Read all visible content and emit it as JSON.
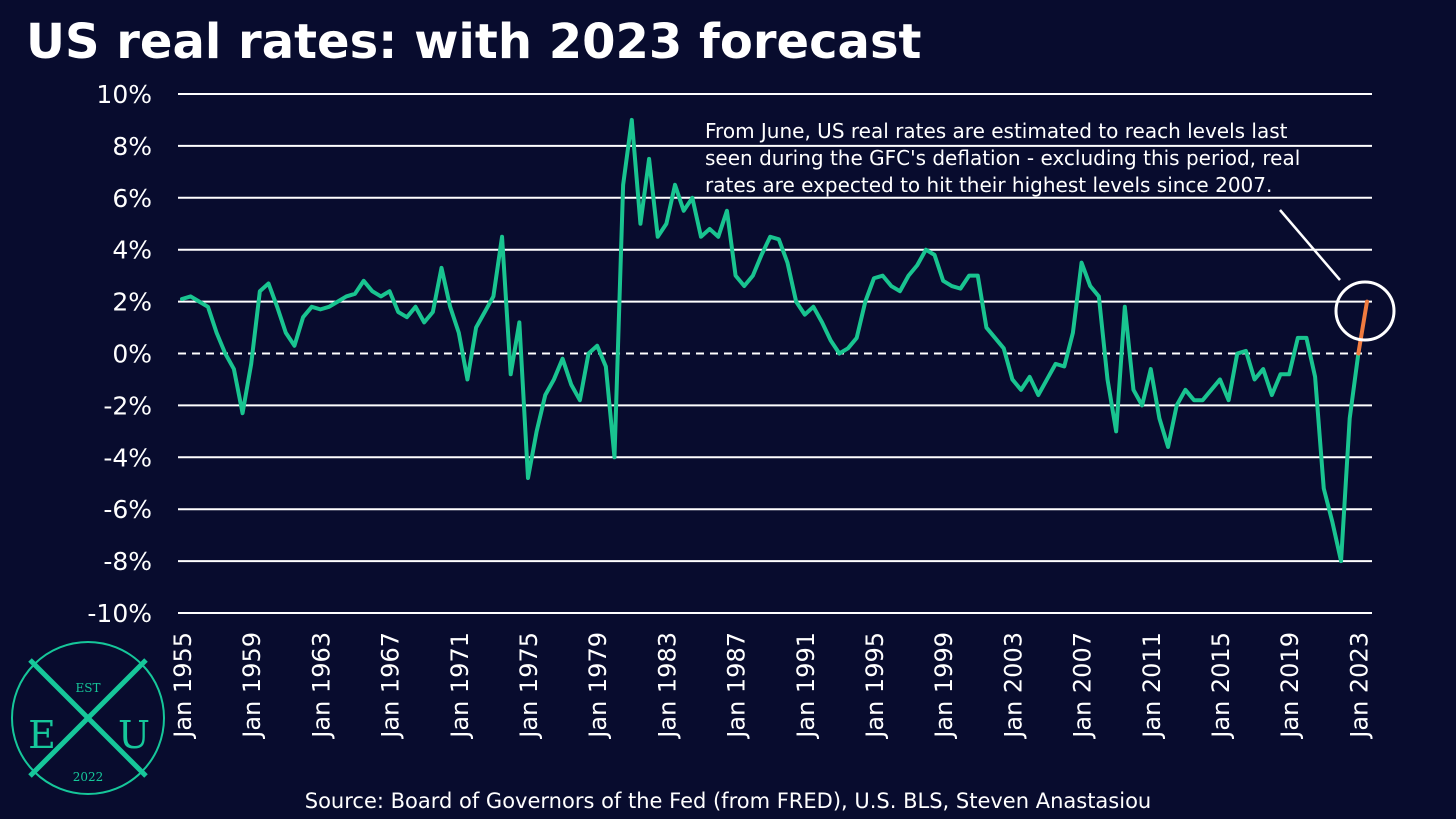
{
  "chart_data": {
    "type": "line",
    "title": "US real rates: with 2023 forecast",
    "source": "Source: Board of Governors of the Fed (from FRED), U.S. BLS, Steven Anastasiou",
    "annotation": [
      "From June, US real rates are estimated to reach levels last",
      "seen during the GFC's deflation - excluding this period, real",
      "rates are expected to hit their highest levels since 2007."
    ],
    "categories": [
      "Jan 1955",
      null,
      null,
      null,
      null,
      null,
      null,
      null,
      "Jan 1959",
      null,
      null,
      null,
      null,
      null,
      null,
      null,
      "Jan 1963",
      null,
      null,
      null,
      null,
      null,
      null,
      null,
      "Jan 1967",
      null,
      null,
      null,
      null,
      null,
      null,
      null,
      "Jan 1971",
      null,
      null,
      null,
      null,
      null,
      null,
      null,
      "Jan 1975",
      null,
      null,
      null,
      null,
      null,
      null,
      null,
      "Jan 1979",
      null,
      null,
      null,
      null,
      null,
      null,
      null,
      "Jan 1983",
      null,
      null,
      null,
      null,
      null,
      null,
      null,
      "Jan 1987",
      null,
      null,
      null,
      null,
      null,
      null,
      null,
      "Jan 1991",
      null,
      null,
      null,
      null,
      null,
      null,
      null,
      "Jan 1995",
      null,
      null,
      null,
      null,
      null,
      null,
      null,
      "Jan 1999",
      null,
      null,
      null,
      null,
      null,
      null,
      null,
      "Jan 2003",
      null,
      null,
      null,
      null,
      null,
      null,
      null,
      "Jan 2007",
      null,
      null,
      null,
      null,
      null,
      null,
      null,
      "Jan 2011",
      null,
      null,
      null,
      null,
      null,
      null,
      null,
      "Jan 2015",
      null,
      null,
      null,
      null,
      null,
      null,
      null,
      "Jan 2019",
      null,
      null,
      null,
      null,
      null,
      null,
      null,
      "Jan 2023",
      null
    ],
    "series": [
      {
        "color": "#19c490",
        "values": [
          2.1,
          2.2,
          2.0,
          1.8,
          0.8,
          0.0,
          -0.6,
          -2.3,
          -0.4,
          2.4,
          2.7,
          1.8,
          0.8,
          0.3,
          1.4,
          1.8,
          1.7,
          1.8,
          2.0,
          2.2,
          2.3,
          2.8,
          2.4,
          2.2,
          2.4,
          1.6,
          1.4,
          1.8,
          1.2,
          1.6,
          3.3,
          1.8,
          0.8,
          -1.0,
          1.0,
          1.6,
          2.2,
          4.5,
          -0.8,
          1.2,
          -4.8,
          -3.0,
          -1.6,
          -1.0,
          -0.2,
          -1.2,
          -1.8,
          0.0,
          0.3,
          -0.5,
          -4.0,
          6.5,
          9.0,
          5.0,
          7.5,
          4.5,
          5.0,
          6.5,
          5.5,
          6.0,
          4.5,
          4.8,
          4.5,
          5.5,
          3.0,
          2.6,
          3.0,
          3.8,
          4.5,
          4.4,
          3.5,
          2.0,
          1.5,
          1.8,
          1.2,
          0.5,
          0.0,
          0.2,
          0.6,
          2.0,
          2.9,
          3.0,
          2.6,
          2.4,
          3.0,
          3.4,
          4.0,
          3.8,
          2.8,
          2.6,
          2.5,
          3.0,
          3.0,
          1.0,
          0.6,
          0.2,
          -1.0,
          -1.4,
          -0.9,
          -1.6,
          -1.0,
          -0.4,
          -0.5,
          0.8,
          3.5,
          2.6,
          2.2,
          -1.0,
          -3.0,
          1.8,
          -1.4,
          -2.0,
          -0.6,
          -2.5,
          -3.6,
          -2.0,
          -1.4,
          -1.8,
          -1.8,
          -1.4,
          -1.0,
          -1.8,
          0.0,
          0.1,
          -1.0,
          -0.6,
          -1.6,
          -0.8,
          -0.8,
          0.6,
          0.6,
          -0.9,
          -5.2,
          -6.5,
          -8.0,
          -2.5,
          0.0,
          null
        ]
      },
      {
        "color": "#f07b3f",
        "values": [
          null,
          null,
          null,
          null,
          null,
          null,
          null,
          null,
          null,
          null,
          null,
          null,
          null,
          null,
          null,
          null,
          null,
          null,
          null,
          null,
          null,
          null,
          null,
          null,
          null,
          null,
          null,
          null,
          null,
          null,
          null,
          null,
          null,
          null,
          null,
          null,
          null,
          null,
          null,
          null,
          null,
          null,
          null,
          null,
          null,
          null,
          null,
          null,
          null,
          null,
          null,
          null,
          null,
          null,
          null,
          null,
          null,
          null,
          null,
          null,
          null,
          null,
          null,
          null,
          null,
          null,
          null,
          null,
          null,
          null,
          null,
          null,
          null,
          null,
          null,
          null,
          null,
          null,
          null,
          null,
          null,
          null,
          null,
          null,
          null,
          null,
          null,
          null,
          null,
          null,
          null,
          null,
          null,
          null,
          null,
          null,
          null,
          null,
          null,
          null,
          null,
          null,
          null,
          null,
          null,
          null,
          null,
          null,
          null,
          null,
          null,
          null,
          null,
          null,
          null,
          null,
          null,
          null,
          null,
          null,
          null,
          null,
          null,
          null,
          null,
          null,
          null,
          null,
          null,
          null,
          null,
          null,
          null,
          null,
          null,
          null,
          0.0,
          2.0
        ]
      }
    ],
    "ylim": [
      -10,
      10
    ],
    "yticks": [
      {
        "value": -10,
        "label": "-10%"
      },
      {
        "value": -8,
        "label": "-8%"
      },
      {
        "value": -6,
        "label": "-6%"
      },
      {
        "value": -4,
        "label": "-4%"
      },
      {
        "value": -2,
        "label": "-2%"
      },
      {
        "value": 0,
        "label": "0%"
      },
      {
        "value": 2,
        "label": "2%"
      },
      {
        "value": 4,
        "label": "4%"
      },
      {
        "value": 6,
        "label": "6%"
      },
      {
        "value": 8,
        "label": "8%"
      },
      {
        "value": 10,
        "label": "10%"
      }
    ],
    "grid": true
  },
  "logo": {
    "top": "EST",
    "left": "E",
    "right": "U",
    "bottom": "2022"
  }
}
